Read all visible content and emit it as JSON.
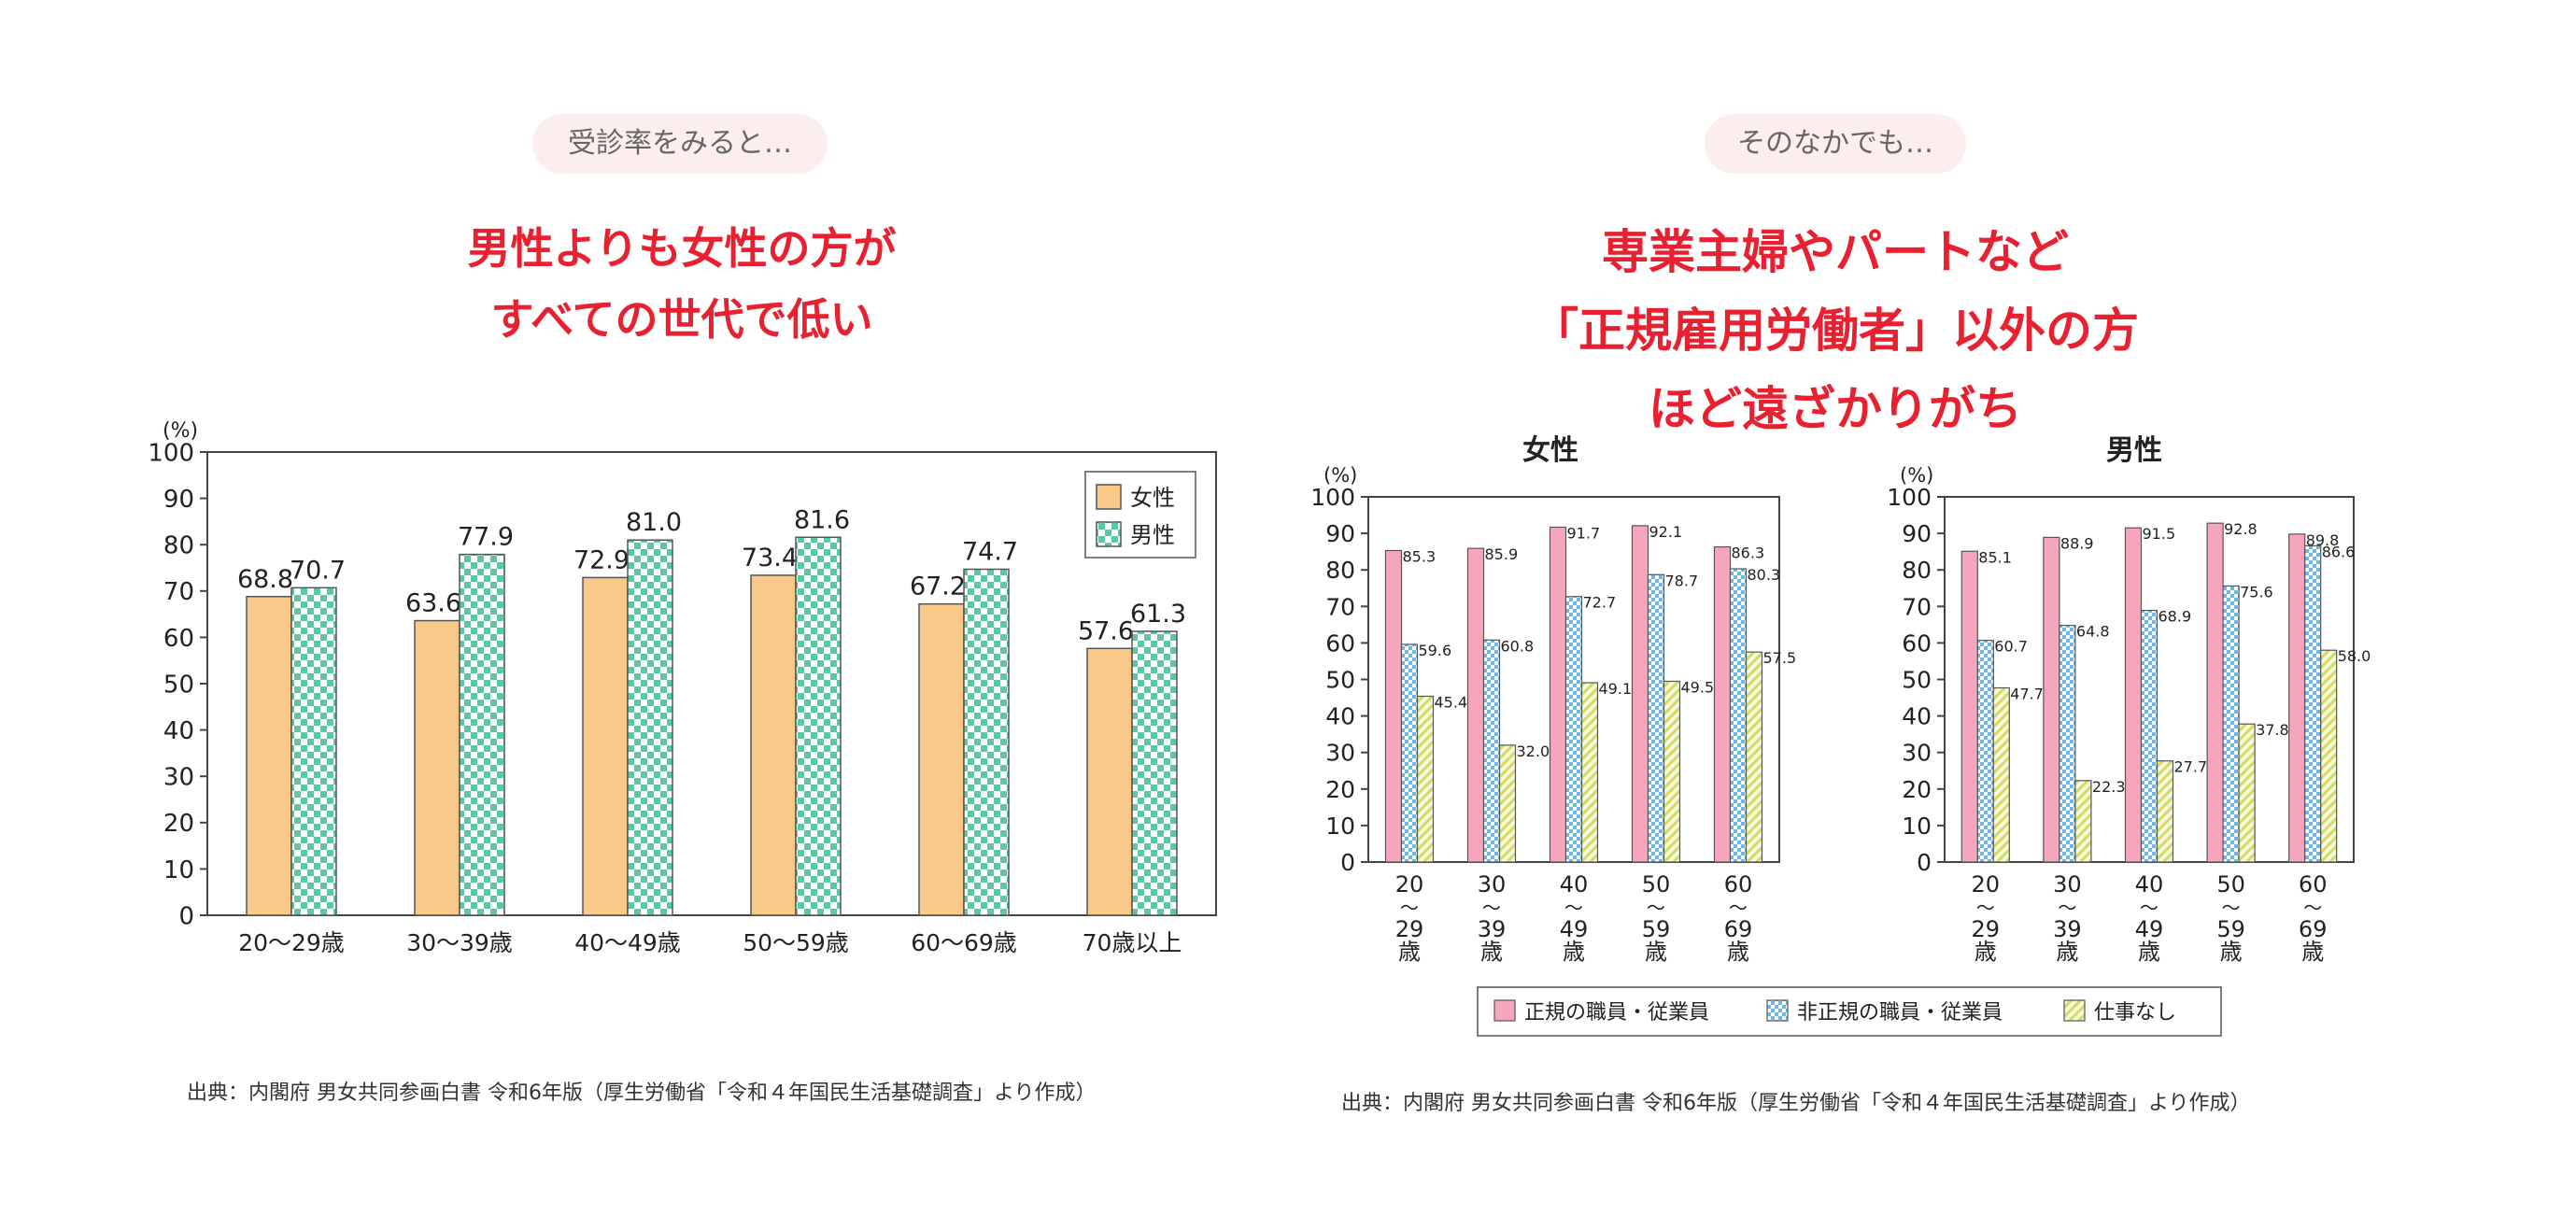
{
  "left_panel": {
    "pill": "受診率をみると…",
    "headline": [
      "男性よりも女性の方が",
      "すべての世代で低い"
    ],
    "source": "出典：内閣府 男女共同参画白書 令和6年版（厚生労働省「令和４年国民生活基礎調査」より作成）"
  },
  "right_panel": {
    "pill": "そのなかでも…",
    "headline": [
      "専業主婦やパートなど",
      "「正規雇用労働者」以外の方",
      "ほど遠ざかりがち"
    ],
    "source": "出典：内閣府 男女共同参画白書 令和6年版（厚生労働省「令和４年国民生活基礎調査」より作成）"
  },
  "colors": {
    "female": "#f9c98a",
    "male_check_a": "#5cc8a0",
    "male_check_b": "#ffffff",
    "regular": "#f5a6bd",
    "nonregular_a": "#6bb8e8",
    "nonregular_b": "#ffffff",
    "nojob_a": "#d2dc62",
    "nojob_b": "#f7f8dc",
    "headline": "#e8202f"
  },
  "chart_data": [
    {
      "type": "bar",
      "title": "",
      "ylabel": "(%)",
      "ylim": [
        0,
        100
      ],
      "yticks": [
        "0",
        "10",
        "20",
        "30",
        "40",
        "50",
        "60",
        "70",
        "80",
        "90",
        "100"
      ],
      "categories": [
        "20～29歳",
        "30～39歳",
        "40～49歳",
        "50～59歳",
        "60～69歳",
        "70歳以上"
      ],
      "series": [
        {
          "name": "女性",
          "values": [
            68.8,
            63.6,
            72.9,
            73.4,
            67.2,
            57.6
          ],
          "labels": [
            "68.8",
            "63.6",
            "72.9",
            "73.4",
            "67.2",
            "57.6"
          ]
        },
        {
          "name": "男性",
          "values": [
            70.7,
            77.9,
            81.0,
            81.6,
            74.7,
            61.3
          ],
          "labels": [
            "70.7",
            "77.9",
            "81.0",
            "81.6",
            "74.7",
            "61.3"
          ]
        }
      ],
      "legend": "top-right"
    },
    {
      "type": "bar",
      "title": "女性",
      "ylabel": "(%)",
      "ylim": [
        0,
        100
      ],
      "yticks": [
        "0",
        "10",
        "20",
        "30",
        "40",
        "50",
        "60",
        "70",
        "80",
        "90",
        "100"
      ],
      "categories": [
        [
          "20",
          "～",
          "29",
          "歳"
        ],
        [
          "30",
          "～",
          "39",
          "歳"
        ],
        [
          "40",
          "～",
          "49",
          "歳"
        ],
        [
          "50",
          "～",
          "59",
          "歳"
        ],
        [
          "60",
          "～",
          "69",
          "歳"
        ]
      ],
      "series": [
        {
          "name": "正規の職員・従業員",
          "values": [
            85.3,
            85.9,
            91.7,
            92.1,
            86.3
          ],
          "labels": [
            "85.3",
            "85.9",
            "91.7",
            "92.1",
            "86.3"
          ]
        },
        {
          "name": "非正規の職員・従業員",
          "values": [
            59.6,
            60.8,
            72.7,
            78.7,
            80.3
          ],
          "labels": [
            "59.6",
            "60.8",
            "72.7",
            "78.7",
            "80.3"
          ]
        },
        {
          "name": "仕事なし",
          "values": [
            45.4,
            32.0,
            49.1,
            49.5,
            57.5
          ],
          "labels": [
            "45.4",
            "32.0",
            "49.1",
            "49.5",
            "57.5"
          ]
        }
      ]
    },
    {
      "type": "bar",
      "title": "男性",
      "ylabel": "(%)",
      "ylim": [
        0,
        100
      ],
      "yticks": [
        "0",
        "10",
        "20",
        "30",
        "40",
        "50",
        "60",
        "70",
        "80",
        "90",
        "100"
      ],
      "categories": [
        [
          "20",
          "～",
          "29",
          "歳"
        ],
        [
          "30",
          "～",
          "39",
          "歳"
        ],
        [
          "40",
          "～",
          "49",
          "歳"
        ],
        [
          "50",
          "～",
          "59",
          "歳"
        ],
        [
          "60",
          "～",
          "69",
          "歳"
        ]
      ],
      "series": [
        {
          "name": "正規の職員・従業員",
          "values": [
            85.1,
            88.9,
            91.5,
            92.8,
            89.8
          ],
          "labels": [
            "85.1",
            "88.9",
            "91.5",
            "92.8",
            "89.8"
          ]
        },
        {
          "name": "非正規の職員・従業員",
          "values": [
            60.7,
            64.8,
            68.9,
            75.6,
            86.6
          ],
          "labels": [
            "60.7",
            "64.8",
            "68.9",
            "75.6",
            "86.6"
          ]
        },
        {
          "name": "仕事なし",
          "values": [
            47.7,
            22.3,
            27.7,
            37.8,
            58.0
          ],
          "labels": [
            "47.7",
            "22.3",
            "27.7",
            "37.8",
            "58.0"
          ]
        }
      ]
    }
  ],
  "employment_legend": [
    "正規の職員・従業員",
    "非正規の職員・従業員",
    "仕事なし"
  ]
}
